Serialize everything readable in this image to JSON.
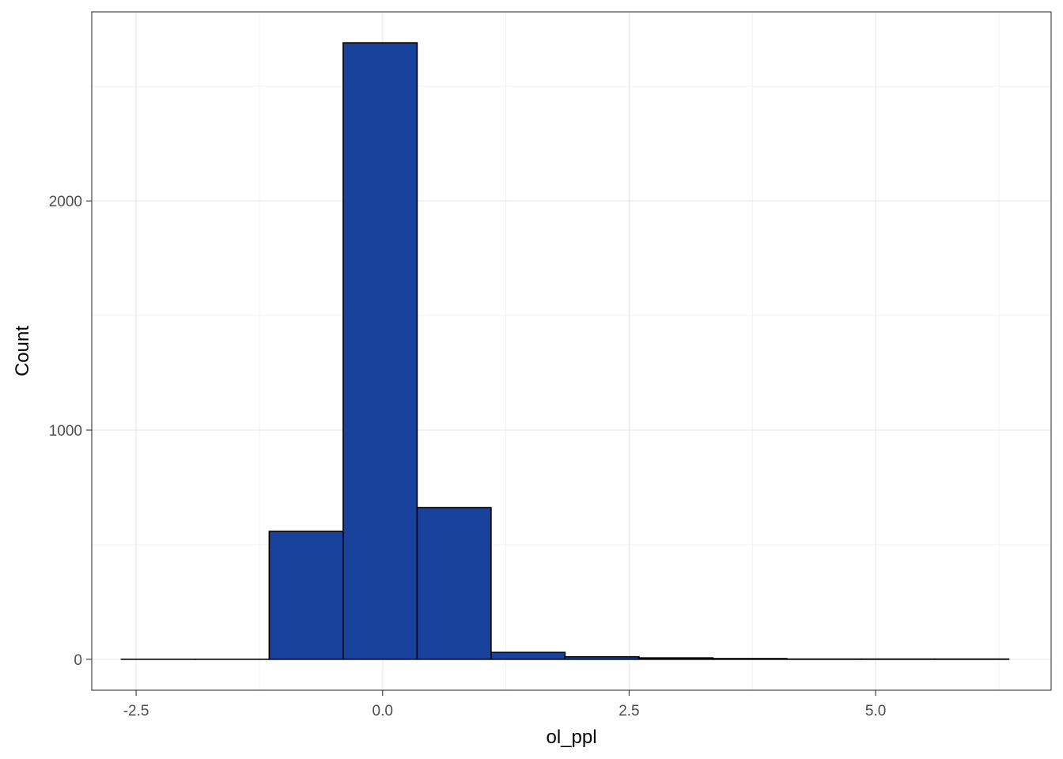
{
  "chart_data": {
    "type": "bar",
    "xlabel": "ol_ppl",
    "ylabel": "Count",
    "xlim": [
      -2.95,
      6.78
    ],
    "ylim": [
      -135,
      2825
    ],
    "grid": true,
    "x_ticks": [
      {
        "value": -2.5,
        "label": "-2.5"
      },
      {
        "value": 0.0,
        "label": "0.0"
      },
      {
        "value": 2.5,
        "label": "2.5"
      },
      {
        "value": 5.0,
        "label": "5.0"
      }
    ],
    "y_ticks": [
      {
        "value": 0,
        "label": "0"
      },
      {
        "value": 1000,
        "label": "1000"
      },
      {
        "value": 2000,
        "label": "2000"
      }
    ],
    "bins": [
      {
        "x0": -2.65,
        "x1": -1.9,
        "count": 0
      },
      {
        "x0": -1.9,
        "x1": -1.15,
        "count": 0
      },
      {
        "x0": -1.15,
        "x1": -0.4,
        "count": 558
      },
      {
        "x0": -0.4,
        "x1": 0.35,
        "count": 2690
      },
      {
        "x0": 0.35,
        "x1": 1.1,
        "count": 662
      },
      {
        "x0": 1.1,
        "x1": 1.85,
        "count": 30
      },
      {
        "x0": 1.85,
        "x1": 2.6,
        "count": 11
      },
      {
        "x0": 2.6,
        "x1": 3.35,
        "count": 6
      },
      {
        "x0": 3.35,
        "x1": 4.1,
        "count": 3
      },
      {
        "x0": 4.1,
        "x1": 4.85,
        "count": 1
      },
      {
        "x0": 4.85,
        "x1": 5.6,
        "count": 1
      },
      {
        "x0": 5.6,
        "x1": 6.35,
        "count": 1
      }
    ],
    "colors": {
      "bar_fill": "#18429B",
      "bar_stroke": "#000000",
      "grid_major": "#EBEBEB",
      "grid_minor": "#F2F2F2",
      "panel_border": "#333333",
      "tick_text": "#4D4D4D",
      "title_text": "#000000"
    }
  }
}
